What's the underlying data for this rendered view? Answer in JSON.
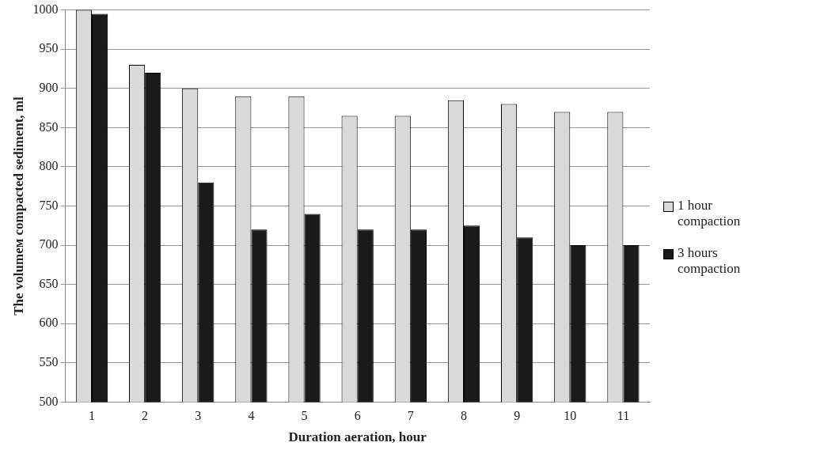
{
  "chart_data": {
    "type": "bar",
    "xlabel": "Duration aeration, hour",
    "ylabel": "The volumeм compacted sediment, ml",
    "categories": [
      "1",
      "2",
      "3",
      "4",
      "5",
      "6",
      "7",
      "8",
      "9",
      "10",
      "11"
    ],
    "series": [
      {
        "name": "1 hour compaction",
        "color": "#d9d9d9",
        "values": [
          1000,
          930,
          900,
          890,
          890,
          865,
          865,
          885,
          880,
          870,
          870
        ]
      },
      {
        "name": "3 hours compaction",
        "color": "#1a1a1a",
        "values": [
          995,
          920,
          780,
          720,
          740,
          720,
          720,
          725,
          710,
          700,
          700
        ]
      }
    ],
    "ylim": [
      500,
      1000
    ],
    "yticks": [
      500,
      550,
      600,
      650,
      700,
      750,
      800,
      850,
      900,
      950,
      1000
    ],
    "grid": "y",
    "legend": "right"
  }
}
